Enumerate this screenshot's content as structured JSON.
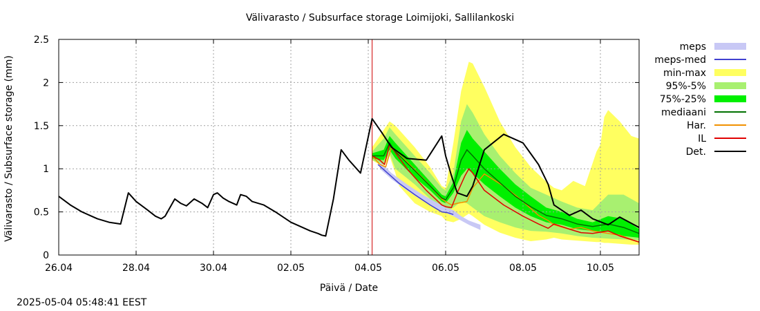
{
  "timestamp": "2025-05-04 05:48:41 EEST",
  "chart_data": {
    "type": "line",
    "title": "Välivarasto / Subsurface storage  Loimijoki, Sallilankoski",
    "xlabel": "Päivä / Date",
    "ylabel": "Välivarasto / Subsurface storage (mm)",
    "xlim": [
      0,
      15
    ],
    "ylim": [
      0,
      2.5
    ],
    "x_ticks": [
      {
        "x": 0,
        "label": "26.04"
      },
      {
        "x": 2,
        "label": "28.04"
      },
      {
        "x": 4,
        "label": "30.04"
      },
      {
        "x": 6,
        "label": "02.05"
      },
      {
        "x": 8,
        "label": "04.05"
      },
      {
        "x": 10,
        "label": "06.05"
      },
      {
        "x": 12,
        "label": "08.05"
      },
      {
        "x": 14,
        "label": "10.05"
      }
    ],
    "y_ticks": [
      {
        "y": 0,
        "label": "0"
      },
      {
        "y": 0.5,
        "label": "0.5"
      },
      {
        "y": 1,
        "label": "1"
      },
      {
        "y": 1.5,
        "label": "1.5"
      },
      {
        "y": 2,
        "label": "2"
      },
      {
        "y": 2.5,
        "label": "2.5"
      }
    ],
    "grid": true,
    "legend_position": "right",
    "forecast_start_x": 8.1,
    "legend": [
      {
        "label": "meps",
        "kind": "band",
        "color": "#c8c8f5"
      },
      {
        "label": "meps-med",
        "kind": "line",
        "color": "#4040d0"
      },
      {
        "label": "min-max",
        "kind": "band",
        "color": "#ffff60"
      },
      {
        "label": "95%-5%",
        "kind": "band",
        "color": "#a8f070"
      },
      {
        "label": "75%-25%",
        "kind": "band",
        "color": "#00f000"
      },
      {
        "label": "mediaani",
        "kind": "line",
        "color": "#007000"
      },
      {
        "label": "Har.",
        "kind": "line",
        "color": "#f09000"
      },
      {
        "label": "IL",
        "kind": "line",
        "color": "#e00000"
      },
      {
        "label": "Det.",
        "kind": "line",
        "color": "#000000"
      }
    ],
    "bands": [
      {
        "name": "min-max",
        "color": "#ffff60",
        "x": [
          8.1,
          8.4,
          8.55,
          8.7,
          8.8,
          9.2,
          9.6,
          9.9,
          10.0,
          10.2,
          10.4,
          10.6,
          10.7,
          11.0,
          11.4,
          11.8,
          12.2,
          12.6,
          12.8,
          13.0,
          13.3,
          13.6,
          13.9,
          14.0,
          14.1,
          14.2,
          14.5,
          14.8,
          15.0
        ],
        "upper": [
          1.25,
          1.45,
          1.55,
          1.5,
          1.45,
          1.25,
          1.02,
          0.8,
          0.78,
          1.3,
          1.9,
          2.24,
          2.22,
          1.95,
          1.55,
          1.25,
          1.02,
          0.85,
          0.78,
          0.75,
          0.86,
          0.8,
          1.2,
          1.28,
          1.6,
          1.68,
          1.55,
          1.38,
          1.35
        ],
        "lower": [
          1.1,
          1.02,
          1.15,
          0.95,
          0.8,
          0.6,
          0.5,
          0.45,
          0.4,
          0.38,
          0.42,
          0.48,
          0.45,
          0.35,
          0.26,
          0.2,
          0.16,
          0.18,
          0.2,
          0.18,
          0.17,
          0.16,
          0.15,
          0.15,
          0.14,
          0.14,
          0.13,
          0.12,
          0.12
        ]
      },
      {
        "name": "95%-5%",
        "color": "#a8f070",
        "x": [
          8.1,
          8.4,
          8.55,
          8.7,
          9.2,
          9.6,
          9.9,
          10.0,
          10.2,
          10.4,
          10.55,
          10.7,
          11.0,
          11.4,
          11.8,
          12.2,
          12.6,
          13.0,
          13.4,
          13.8,
          14.2,
          14.6,
          15.0
        ],
        "upper": [
          1.2,
          1.35,
          1.48,
          1.4,
          1.15,
          0.95,
          0.78,
          0.75,
          0.95,
          1.55,
          1.75,
          1.65,
          1.4,
          1.15,
          0.95,
          0.78,
          0.7,
          0.62,
          0.55,
          0.52,
          0.7,
          0.7,
          0.6
        ],
        "lower": [
          1.1,
          1.05,
          1.18,
          1.0,
          0.82,
          0.65,
          0.55,
          0.5,
          0.55,
          0.62,
          0.6,
          0.55,
          0.45,
          0.38,
          0.32,
          0.28,
          0.27,
          0.25,
          0.22,
          0.2,
          0.19,
          0.18,
          0.17
        ]
      },
      {
        "name": "75%-25%",
        "color": "#00f000",
        "x": [
          8.1,
          8.4,
          8.55,
          8.7,
          9.2,
          9.6,
          9.9,
          10.0,
          10.2,
          10.4,
          10.55,
          10.7,
          11.0,
          11.4,
          11.8,
          12.2,
          12.6,
          13.0,
          13.4,
          13.8,
          14.2,
          14.6,
          15.0
        ],
        "upper": [
          1.18,
          1.22,
          1.38,
          1.3,
          1.05,
          0.85,
          0.7,
          0.68,
          0.85,
          1.3,
          1.45,
          1.35,
          1.2,
          1.0,
          0.82,
          0.68,
          0.55,
          0.5,
          0.42,
          0.38,
          0.45,
          0.42,
          0.3
        ],
        "lower": [
          1.12,
          1.1,
          1.22,
          1.12,
          0.9,
          0.75,
          0.62,
          0.6,
          0.72,
          0.92,
          1.0,
          0.95,
          0.82,
          0.68,
          0.55,
          0.45,
          0.38,
          0.35,
          0.3,
          0.28,
          0.27,
          0.22,
          0.2
        ]
      },
      {
        "name": "meps",
        "color": "#c8c8f5",
        "x": [
          8.3,
          8.6,
          9.0,
          9.4,
          9.8,
          10.0,
          10.2,
          10.4,
          10.6,
          10.9
        ],
        "upper": [
          1.08,
          0.95,
          0.82,
          0.7,
          0.6,
          0.55,
          0.52,
          0.45,
          0.4,
          0.35
        ],
        "lower": [
          1.0,
          0.88,
          0.75,
          0.63,
          0.53,
          0.49,
          0.45,
          0.4,
          0.35,
          0.29
        ]
      }
    ],
    "series": [
      {
        "name": "Det.",
        "color": "#000000",
        "width": 2,
        "x": [
          0,
          0.3,
          0.6,
          1.0,
          1.3,
          1.6,
          1.8,
          2.0,
          2.3,
          2.5,
          2.65,
          2.75,
          3.0,
          3.15,
          3.3,
          3.5,
          3.7,
          3.85,
          4.0,
          4.1,
          4.25,
          4.4,
          4.6,
          4.7,
          4.85,
          5.0,
          5.3,
          5.6,
          6.0,
          6.5,
          6.7,
          6.8,
          6.9,
          7.1,
          7.3,
          7.5,
          7.8,
          8.1,
          8.35,
          8.6,
          9.0,
          9.5,
          9.9,
          10.0,
          10.15,
          10.3,
          10.55,
          10.7,
          11.0,
          11.5,
          12.0,
          12.4,
          12.65,
          12.8,
          13.2,
          13.5,
          13.8,
          14.2,
          14.5,
          15.0
        ],
        "y": [
          0.68,
          0.58,
          0.5,
          0.42,
          0.38,
          0.36,
          0.72,
          0.62,
          0.52,
          0.45,
          0.42,
          0.45,
          0.65,
          0.6,
          0.57,
          0.65,
          0.6,
          0.55,
          0.7,
          0.72,
          0.66,
          0.62,
          0.58,
          0.7,
          0.68,
          0.62,
          0.58,
          0.5,
          0.38,
          0.28,
          0.25,
          0.23,
          0.22,
          0.65,
          1.22,
          1.1,
          0.95,
          1.58,
          1.42,
          1.25,
          1.12,
          1.1,
          1.38,
          1.15,
          0.92,
          0.72,
          0.68,
          0.8,
          1.22,
          1.4,
          1.3,
          1.05,
          0.82,
          0.58,
          0.46,
          0.52,
          0.42,
          0.35,
          0.44,
          0.32
        ],
        "draw_x_start": 0
      },
      {
        "name": "mediaani",
        "color": "#007000",
        "width": 1.5,
        "x": [
          8.1,
          8.4,
          8.55,
          8.7,
          9.2,
          9.6,
          9.9,
          10.0,
          10.2,
          10.4,
          10.55,
          10.7,
          11.0,
          11.4,
          11.8,
          12.2,
          12.6,
          13.0,
          13.4,
          13.8,
          14.2,
          14.6,
          15.0
        ],
        "y": [
          1.15,
          1.15,
          1.3,
          1.2,
          0.98,
          0.8,
          0.66,
          0.64,
          0.78,
          1.1,
          1.22,
          1.15,
          1.0,
          0.84,
          0.68,
          0.56,
          0.46,
          0.42,
          0.36,
          0.33,
          0.36,
          0.32,
          0.25
        ]
      },
      {
        "name": "Har.",
        "color": "#f09000",
        "width": 1.5,
        "x": [
          8.1,
          8.3,
          8.45,
          8.6,
          9.0,
          9.5,
          9.9,
          10.0,
          10.15,
          10.3,
          10.55,
          10.7,
          11.0,
          11.5,
          12.0,
          12.4,
          12.65,
          12.8,
          13.2,
          13.5,
          13.8,
          14.2,
          14.5,
          15.0
        ],
        "y": [
          1.15,
          1.05,
          1.02,
          1.25,
          1.08,
          0.85,
          0.65,
          0.62,
          0.58,
          0.6,
          0.62,
          0.78,
          0.94,
          0.8,
          0.62,
          0.46,
          0.4,
          0.35,
          0.3,
          0.32,
          0.28,
          0.25,
          0.23,
          0.15
        ]
      },
      {
        "name": "IL",
        "color": "#e00000",
        "width": 1.5,
        "x": [
          8.1,
          8.3,
          8.42,
          8.55,
          8.65,
          9.0,
          9.5,
          9.9,
          10.0,
          10.15,
          10.3,
          10.5,
          10.6,
          10.7,
          11.0,
          11.5,
          12.0,
          12.4,
          12.65,
          12.8,
          13.2,
          13.5,
          13.8,
          14.2,
          14.5,
          15.0
        ],
        "y": [
          1.15,
          1.1,
          1.05,
          1.28,
          1.22,
          1.0,
          0.75,
          0.58,
          0.56,
          0.55,
          0.72,
          0.92,
          1.0,
          0.95,
          0.75,
          0.58,
          0.45,
          0.36,
          0.31,
          0.36,
          0.3,
          0.26,
          0.25,
          0.28,
          0.22,
          0.15
        ]
      },
      {
        "name": "meps-med",
        "color": "#4040d0",
        "width": 1.5,
        "x": [
          8.25,
          8.5,
          8.8,
          9.2,
          9.6,
          9.9,
          10.05,
          10.2
        ],
        "y": [
          1.05,
          0.95,
          0.83,
          0.7,
          0.58,
          0.5,
          0.49,
          0.47
        ]
      }
    ]
  }
}
